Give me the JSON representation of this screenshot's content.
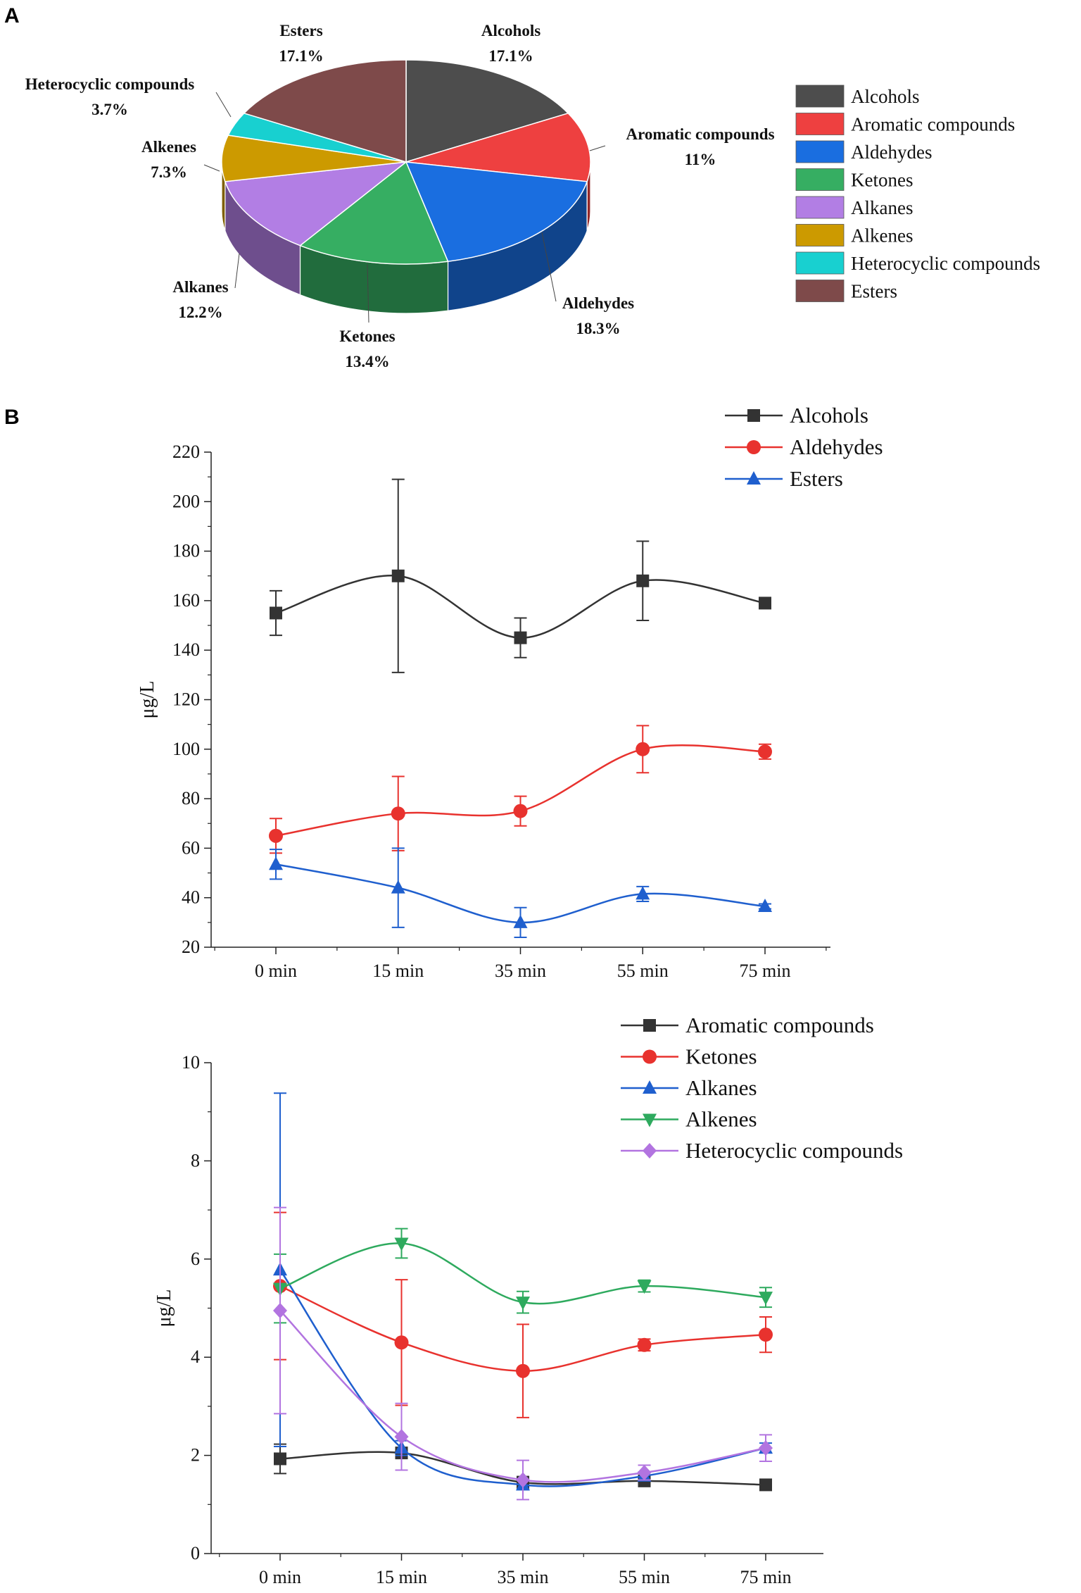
{
  "panel_labels": [
    "A",
    "B"
  ],
  "chart_data": [
    {
      "type": "pie",
      "panel": "A",
      "slices": [
        {
          "label": "Alcohols",
          "value": 17.1,
          "value_label": "17.1%",
          "color": "#4d4d4d"
        },
        {
          "label": "Aromatic compounds",
          "value": 11,
          "value_label": "11%",
          "color": "#ee4040"
        },
        {
          "label": "Aldehydes",
          "value": 18.3,
          "value_label": "18.3%",
          "color": "#1a6ee0"
        },
        {
          "label": "Ketones",
          "value": 13.4,
          "value_label": "13.4%",
          "color": "#36ae62"
        },
        {
          "label": "Alkanes",
          "value": 12.2,
          "value_label": "12.2%",
          "color": "#b27ee4"
        },
        {
          "label": "Alkenes",
          "value": 7.3,
          "value_label": "7.3%",
          "color": "#cc9a00"
        },
        {
          "label": "Heterocyclic compounds",
          "value": 3.7,
          "value_label": "3.7%",
          "color": "#18d0d0"
        },
        {
          "label": "Esters",
          "value": 17.1,
          "value_label": "17.1%",
          "color": "#7e4a4a"
        }
      ],
      "legend": [
        "Alcohols",
        "Aromatic compounds",
        "Aldehydes",
        "Ketones",
        "Alkanes",
        "Alkenes",
        "Heterocyclic compounds",
        "Esters"
      ]
    },
    {
      "type": "line",
      "panel": "B",
      "ylabel": "μg/L",
      "ylim": [
        20,
        220
      ],
      "yticks": [
        "20",
        "40",
        "60",
        "80",
        "100",
        "120",
        "140",
        "160",
        "180",
        "200",
        "220"
      ],
      "categories": [
        "0 min",
        "15 min",
        "35 min",
        "55 min",
        "75 min"
      ],
      "series": [
        {
          "name": "Alcohols",
          "color": "#333333",
          "marker": "square",
          "values": [
            155,
            170,
            145,
            168,
            159
          ],
          "errors": [
            9,
            39,
            8,
            16,
            1.5
          ]
        },
        {
          "name": "Aldehydes",
          "color": "#e8322e",
          "marker": "circle",
          "values": [
            65,
            74,
            75,
            100,
            99
          ],
          "errors": [
            7,
            15,
            6,
            9.5,
            3
          ]
        },
        {
          "name": "Esters",
          "color": "#1f5fce",
          "marker": "triangle-up",
          "values": [
            53.5,
            44,
            30,
            41.5,
            36.5
          ],
          "errors": [
            6,
            16,
            6,
            3,
            1
          ]
        }
      ]
    },
    {
      "type": "line",
      "panel": "B",
      "ylabel": "μg/L",
      "ylim": [
        0,
        10
      ],
      "yticks": [
        "0",
        "2",
        "4",
        "6",
        "8",
        "10"
      ],
      "categories": [
        "0 min",
        "15 min",
        "35 min",
        "55 min",
        "75 min"
      ],
      "series": [
        {
          "name": "Aromatic compounds",
          "color": "#333333",
          "marker": "square",
          "values": [
            1.93,
            2.05,
            1.45,
            1.48,
            1.4
          ],
          "errors": [
            0.3,
            0.1,
            0.12,
            0.1,
            0.05
          ]
        },
        {
          "name": "Ketones",
          "color": "#e8322e",
          "marker": "circle",
          "values": [
            5.45,
            4.3,
            3.72,
            4.25,
            4.46
          ],
          "errors": [
            1.5,
            1.28,
            0.95,
            0.12,
            0.36
          ]
        },
        {
          "name": "Alkanes",
          "color": "#1f5fce",
          "marker": "triangle-up",
          "values": [
            5.78,
            2.15,
            1.4,
            1.58,
            2.15
          ],
          "errors": [
            3.6,
            0.15,
            0.1,
            0.08,
            0.1
          ]
        },
        {
          "name": "Alkenes",
          "color": "#2eaa5e",
          "marker": "triangle-down",
          "values": [
            5.4,
            6.32,
            5.12,
            5.45,
            5.22
          ],
          "errors": [
            0.7,
            0.3,
            0.22,
            0.12,
            0.2
          ]
        },
        {
          "name": "Heterocyclic compounds",
          "color": "#b274e0",
          "marker": "diamond",
          "values": [
            4.95,
            2.38,
            1.5,
            1.65,
            2.15
          ],
          "errors": [
            2.1,
            0.68,
            0.4,
            0.15,
            0.27
          ]
        }
      ]
    }
  ]
}
